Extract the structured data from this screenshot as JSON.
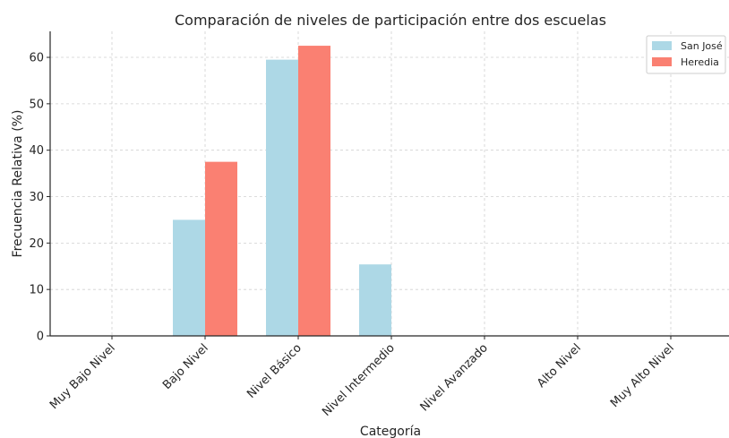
{
  "chart_data": {
    "type": "bar",
    "title": "Comparación de niveles de participación entre dos escuelas",
    "xlabel": "Categoría",
    "ylabel": "Frecuencia Relativa (%)",
    "categories": [
      "Muy Bajo Nivel",
      "Bajo Nivel",
      "Nivel Básico",
      "Nivel Intermedio",
      "Nivel Avanzado",
      "Alto Nivel",
      "Muy Alto Nivel"
    ],
    "series": [
      {
        "name": "San José",
        "color": "#add8e6",
        "values": [
          0,
          25.0,
          59.5,
          15.4,
          0,
          0,
          0
        ]
      },
      {
        "name": "Heredia",
        "color": "#fa8072",
        "values": [
          0,
          37.5,
          62.5,
          0,
          0,
          0,
          0
        ]
      }
    ],
    "ylim": [
      0,
      65.6
    ],
    "yticks": [
      0,
      10,
      20,
      30,
      40,
      50,
      60
    ],
    "grid": true,
    "legend_position": "top-right"
  }
}
